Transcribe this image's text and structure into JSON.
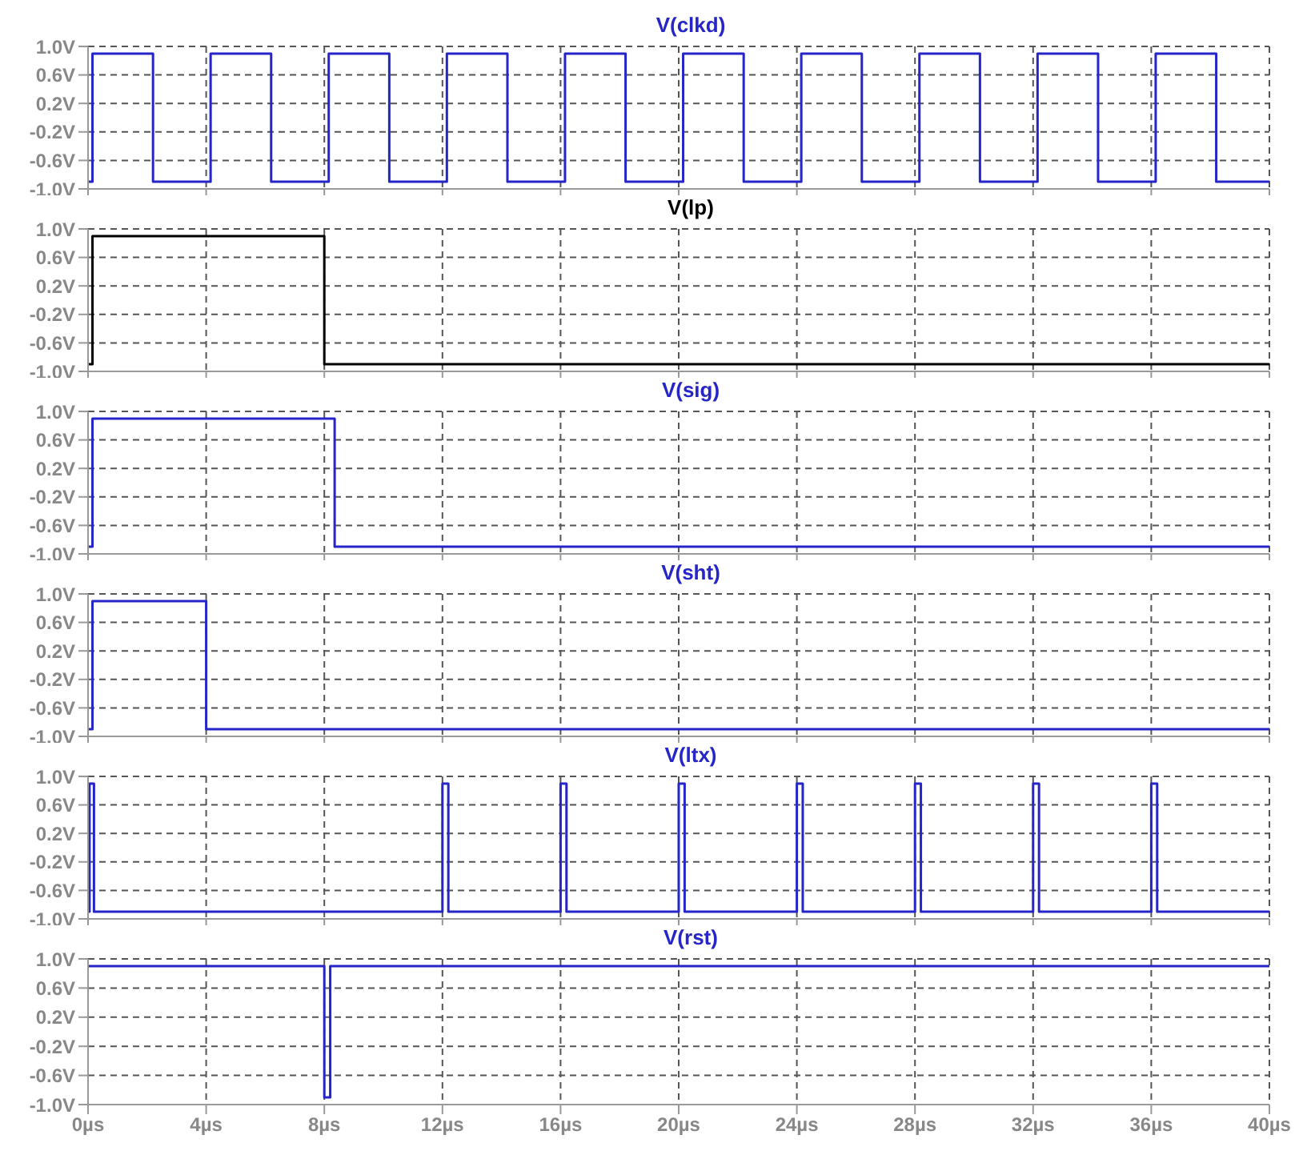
{
  "chart_data": [
    {
      "type": "line",
      "title": "V(clkd)",
      "xlim": [
        0,
        40
      ],
      "ylim": [
        -1,
        1
      ],
      "grid": true,
      "tick_labels": "y",
      "xticks": [
        {
          "value": 0,
          "label": null
        },
        {
          "value": 4,
          "label": null
        },
        {
          "value": 8,
          "label": null
        },
        {
          "value": 12,
          "label": null
        },
        {
          "value": 16,
          "label": null
        },
        {
          "value": 20,
          "label": null
        },
        {
          "value": 24,
          "label": null
        },
        {
          "value": 28,
          "label": null
        },
        {
          "value": 32,
          "label": null
        },
        {
          "value": 36,
          "label": null
        },
        {
          "value": 40,
          "label": null
        }
      ],
      "yticks": [
        {
          "value": -1,
          "label": "-1.0V"
        },
        {
          "value": -0.6,
          "label": "-0.6V"
        },
        {
          "value": -0.2,
          "label": "-0.2V"
        },
        {
          "value": 0.2,
          "label": "0.2V"
        },
        {
          "value": 0.6,
          "label": "0.6V"
        },
        {
          "value": 1,
          "label": "1.0V"
        }
      ],
      "series": [
        {
          "color": "#2525c8",
          "x": [
            0,
            0.15,
            0.15,
            2.2,
            2.2,
            4.15,
            4.15,
            6.2,
            6.2,
            8.15,
            8.15,
            10.2,
            10.2,
            12.15,
            12.15,
            14.2,
            14.2,
            16.15,
            16.15,
            18.2,
            18.2,
            20.15,
            20.15,
            22.2,
            22.2,
            24.15,
            24.15,
            26.2,
            26.2,
            28.15,
            28.15,
            30.2,
            30.2,
            32.15,
            32.15,
            34.2,
            34.2,
            36.15,
            36.15,
            38.2,
            38.2,
            40
          ],
          "values": [
            -0.9,
            -0.9,
            0.9,
            0.9,
            -0.9,
            -0.9,
            0.9,
            0.9,
            -0.9,
            -0.9,
            0.9,
            0.9,
            -0.9,
            -0.9,
            0.9,
            0.9,
            -0.9,
            -0.9,
            0.9,
            0.9,
            -0.9,
            -0.9,
            0.9,
            0.9,
            -0.9,
            -0.9,
            0.9,
            0.9,
            -0.9,
            -0.9,
            0.9,
            0.9,
            -0.9,
            -0.9,
            0.9,
            0.9,
            -0.9,
            -0.9,
            0.9,
            0.9,
            -0.9,
            -0.9
          ]
        }
      ]
    },
    {
      "type": "line",
      "title": "V(lp)",
      "xlim": [
        0,
        40
      ],
      "ylim": [
        -1,
        1
      ],
      "grid": true,
      "tick_labels": "y",
      "xticks": [
        {
          "value": 0,
          "label": null
        },
        {
          "value": 4,
          "label": null
        },
        {
          "value": 8,
          "label": null
        },
        {
          "value": 12,
          "label": null
        },
        {
          "value": 16,
          "label": null
        },
        {
          "value": 20,
          "label": null
        },
        {
          "value": 24,
          "label": null
        },
        {
          "value": 28,
          "label": null
        },
        {
          "value": 32,
          "label": null
        },
        {
          "value": 36,
          "label": null
        },
        {
          "value": 40,
          "label": null
        }
      ],
      "yticks": [
        {
          "value": -1,
          "label": "-1.0V"
        },
        {
          "value": -0.6,
          "label": "-0.6V"
        },
        {
          "value": -0.2,
          "label": "-0.2V"
        },
        {
          "value": 0.2,
          "label": "0.2V"
        },
        {
          "value": 0.6,
          "label": "0.6V"
        },
        {
          "value": 1,
          "label": "1.0V"
        }
      ],
      "series": [
        {
          "color": "#000000",
          "x": [
            0,
            0.15,
            0.15,
            8,
            8,
            40
          ],
          "values": [
            -0.9,
            -0.9,
            0.9,
            0.9,
            -0.9,
            -0.9
          ]
        }
      ]
    },
    {
      "type": "line",
      "title": "V(sig)",
      "xlim": [
        0,
        40
      ],
      "ylim": [
        -1,
        1
      ],
      "grid": true,
      "tick_labels": "y",
      "xticks": [
        {
          "value": 0,
          "label": null
        },
        {
          "value": 4,
          "label": null
        },
        {
          "value": 8,
          "label": null
        },
        {
          "value": 12,
          "label": null
        },
        {
          "value": 16,
          "label": null
        },
        {
          "value": 20,
          "label": null
        },
        {
          "value": 24,
          "label": null
        },
        {
          "value": 28,
          "label": null
        },
        {
          "value": 32,
          "label": null
        },
        {
          "value": 36,
          "label": null
        },
        {
          "value": 40,
          "label": null
        }
      ],
      "yticks": [
        {
          "value": -1,
          "label": "-1.0V"
        },
        {
          "value": -0.6,
          "label": "-0.6V"
        },
        {
          "value": -0.2,
          "label": "-0.2V"
        },
        {
          "value": 0.2,
          "label": "0.2V"
        },
        {
          "value": 0.6,
          "label": "0.6V"
        },
        {
          "value": 1,
          "label": "1.0V"
        }
      ],
      "series": [
        {
          "color": "#2525c8",
          "x": [
            0,
            0.15,
            0.15,
            8.35,
            8.35,
            40
          ],
          "values": [
            -0.9,
            -0.9,
            0.9,
            0.9,
            -0.9,
            -0.9
          ]
        }
      ]
    },
    {
      "type": "line",
      "title": "V(sht)",
      "xlim": [
        0,
        40
      ],
      "ylim": [
        -1,
        1
      ],
      "grid": true,
      "tick_labels": "y",
      "xticks": [
        {
          "value": 0,
          "label": null
        },
        {
          "value": 4,
          "label": null
        },
        {
          "value": 8,
          "label": null
        },
        {
          "value": 12,
          "label": null
        },
        {
          "value": 16,
          "label": null
        },
        {
          "value": 20,
          "label": null
        },
        {
          "value": 24,
          "label": null
        },
        {
          "value": 28,
          "label": null
        },
        {
          "value": 32,
          "label": null
        },
        {
          "value": 36,
          "label": null
        },
        {
          "value": 40,
          "label": null
        }
      ],
      "yticks": [
        {
          "value": -1,
          "label": "-1.0V"
        },
        {
          "value": -0.6,
          "label": "-0.6V"
        },
        {
          "value": -0.2,
          "label": "-0.2V"
        },
        {
          "value": 0.2,
          "label": "0.2V"
        },
        {
          "value": 0.6,
          "label": "0.6V"
        },
        {
          "value": 1,
          "label": "1.0V"
        }
      ],
      "series": [
        {
          "color": "#2525c8",
          "x": [
            0,
            0.15,
            0.15,
            4,
            4,
            40
          ],
          "values": [
            -0.9,
            -0.9,
            0.9,
            0.9,
            -0.9,
            -0.9
          ]
        }
      ]
    },
    {
      "type": "line",
      "title": "V(ltx)",
      "xlim": [
        0,
        40
      ],
      "ylim": [
        -1,
        1
      ],
      "grid": true,
      "tick_labels": "y",
      "xticks": [
        {
          "value": 0,
          "label": null
        },
        {
          "value": 4,
          "label": null
        },
        {
          "value": 8,
          "label": null
        },
        {
          "value": 12,
          "label": null
        },
        {
          "value": 16,
          "label": null
        },
        {
          "value": 20,
          "label": null
        },
        {
          "value": 24,
          "label": null
        },
        {
          "value": 28,
          "label": null
        },
        {
          "value": 32,
          "label": null
        },
        {
          "value": 36,
          "label": null
        },
        {
          "value": 40,
          "label": null
        }
      ],
      "yticks": [
        {
          "value": -1,
          "label": "-1.0V"
        },
        {
          "value": -0.6,
          "label": "-0.6V"
        },
        {
          "value": -0.2,
          "label": "-0.2V"
        },
        {
          "value": 0.2,
          "label": "0.2V"
        },
        {
          "value": 0.6,
          "label": "0.6V"
        },
        {
          "value": 1,
          "label": "1.0V"
        }
      ],
      "series": [
        {
          "color": "#2525c8",
          "x": [
            0,
            0.05,
            0.05,
            0.2,
            0.2,
            12,
            12,
            12.2,
            12.2,
            16,
            16,
            16.2,
            16.2,
            20,
            20,
            20.2,
            20.2,
            24,
            24,
            24.2,
            24.2,
            28,
            28,
            28.2,
            28.2,
            32,
            32,
            32.2,
            32.2,
            36,
            36,
            36.2,
            36.2,
            40
          ],
          "values": [
            -0.9,
            -0.9,
            0.9,
            0.9,
            -0.9,
            -0.9,
            0.9,
            0.9,
            -0.9,
            -0.9,
            0.9,
            0.9,
            -0.9,
            -0.9,
            0.9,
            0.9,
            -0.9,
            -0.9,
            0.9,
            0.9,
            -0.9,
            -0.9,
            0.9,
            0.9,
            -0.9,
            -0.9,
            0.9,
            0.9,
            -0.9,
            -0.9,
            0.9,
            0.9,
            -0.9,
            -0.9
          ]
        }
      ]
    },
    {
      "type": "line",
      "title": "V(rst)",
      "xlim": [
        0,
        40
      ],
      "ylim": [
        -1,
        1
      ],
      "grid": true,
      "xticks": [
        {
          "value": 0,
          "label": "0µs"
        },
        {
          "value": 4,
          "label": "4µs"
        },
        {
          "value": 8,
          "label": "8µs"
        },
        {
          "value": 12,
          "label": "12µs"
        },
        {
          "value": 16,
          "label": "16µs"
        },
        {
          "value": 20,
          "label": "20µs"
        },
        {
          "value": 24,
          "label": "24µs"
        },
        {
          "value": 28,
          "label": "28µs"
        },
        {
          "value": 32,
          "label": "32µs"
        },
        {
          "value": 36,
          "label": "36µs"
        },
        {
          "value": 40,
          "label": "40µs"
        }
      ],
      "yticks": [
        {
          "value": -1,
          "label": "-1.0V"
        },
        {
          "value": -0.6,
          "label": "-0.6V"
        },
        {
          "value": -0.2,
          "label": "-0.2V"
        },
        {
          "value": 0.2,
          "label": "0.2V"
        },
        {
          "value": 0.6,
          "label": "0.6V"
        },
        {
          "value": 1,
          "label": "1.0V"
        }
      ],
      "series": [
        {
          "color": "#2525c8",
          "x": [
            0,
            8,
            8,
            8.2,
            8.2,
            40
          ],
          "values": [
            0.9,
            0.9,
            -0.9,
            -0.9,
            0.9,
            0.9
          ]
        }
      ]
    }
  ]
}
